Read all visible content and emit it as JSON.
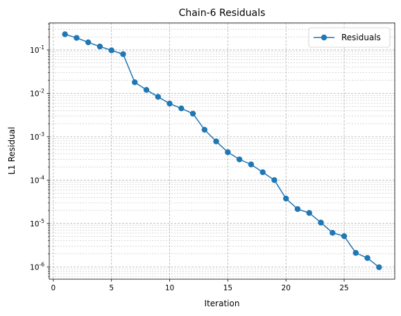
{
  "chart_data": {
    "type": "line",
    "title": "Chain-6 Residuals",
    "xlabel": "Iteration",
    "ylabel": "L1 Residual",
    "yscale": "log",
    "xlim": [
      -0.35,
      29.35
    ],
    "ylim": [
      5.2e-07,
      0.42
    ],
    "xticks": [
      0,
      5,
      10,
      15,
      20,
      25
    ],
    "yticks": [
      {
        "exp": -6,
        "label": "10^-6"
      },
      {
        "exp": -5,
        "label": "10^-5"
      },
      {
        "exp": -4,
        "label": "10^-4"
      },
      {
        "exp": -3,
        "label": "10^-3"
      },
      {
        "exp": -2,
        "label": "10^-2"
      },
      {
        "exp": -1,
        "label": "10^-1"
      }
    ],
    "grid": true,
    "legend_position": "top-right",
    "series": [
      {
        "name": "Residuals",
        "color": "#1f77b4",
        "x": [
          1,
          2,
          3,
          4,
          5,
          6,
          7,
          8,
          9,
          10,
          11,
          12,
          13,
          14,
          15,
          16,
          17,
          18,
          19,
          20,
          21,
          22,
          23,
          24,
          25,
          26,
          27,
          28
        ],
        "y": [
          0.23,
          0.19,
          0.15,
          0.12,
          0.098,
          0.08,
          0.018,
          0.012,
          0.0083,
          0.0058,
          0.0045,
          0.0034,
          0.00145,
          0.00078,
          0.00044,
          0.0003,
          0.00023,
          0.000152,
          0.0001,
          3.75e-05,
          2.15e-05,
          1.75e-05,
          1.05e-05,
          6.1e-06,
          5.1e-06,
          2.1e-06,
          1.6e-06,
          9.8e-07
        ]
      }
    ]
  }
}
